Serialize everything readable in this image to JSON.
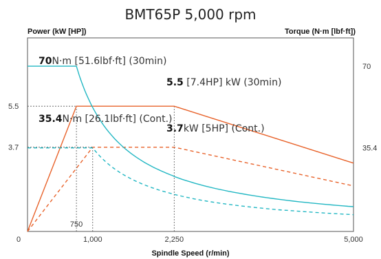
{
  "chart_data": {
    "type": "line",
    "title": "BMT65P  5,000 rpm",
    "xlabel": "Spindle Speed (r/min)",
    "ylabel_left": "Power (kW [HP])",
    "ylabel_right": "Torque (N·m [lbf·ft])",
    "xlim": [
      0,
      5000
    ],
    "ylim_power": [
      0,
      8.5
    ],
    "ylim_torque": [
      0,
      82
    ],
    "x_ticks": [
      {
        "value": 0,
        "label": "0"
      },
      {
        "value": 1000,
        "label": "1,000"
      },
      {
        "value": 2250,
        "label": "2,250"
      },
      {
        "value": 5000,
        "label": "5,000"
      }
    ],
    "inner_x_tick": {
      "value": 750,
      "label": "750"
    },
    "left_ticks": [
      {
        "value": 5.5,
        "label": "5.5"
      },
      {
        "value": 3.7,
        "label": "3.7"
      }
    ],
    "right_ticks": [
      {
        "value": 70,
        "label": "70"
      },
      {
        "value": 35.4,
        "label": "35.4"
      }
    ],
    "series": [
      {
        "name": "Power (30min)",
        "axis": "power",
        "color": "#e8622a",
        "dash": false,
        "x": [
          0,
          750,
          2250,
          5000
        ],
        "y": [
          0,
          5.5,
          5.5,
          3.0
        ]
      },
      {
        "name": "Power (Cont.)",
        "axis": "power",
        "color": "#e8622a",
        "dash": true,
        "x": [
          0,
          1000,
          2250,
          5000
        ],
        "y": [
          0,
          3.7,
          3.7,
          2.0
        ]
      },
      {
        "name": "Torque (30min)",
        "axis": "torque",
        "color": "#22b7c3",
        "dash": false,
        "x": [
          0,
          750,
          1000,
          1500,
          2000,
          2250,
          3000,
          4000,
          5000
        ],
        "y": [
          70,
          70,
          52.5,
          35.0,
          26.3,
          23.3,
          17.5,
          13.1,
          10.5
        ]
      },
      {
        "name": "Torque (Cont.)",
        "axis": "torque",
        "color": "#22b7c3",
        "dash": true,
        "x": [
          0,
          1000,
          1500,
          2000,
          2250,
          3000,
          4000,
          5000
        ],
        "y": [
          35.4,
          35.4,
          23.6,
          17.7,
          15.7,
          11.8,
          8.9,
          7.1
        ]
      }
    ],
    "annotations": [
      {
        "bold": "70",
        "rest": "N·m [51.6lbf·ft] (30min)"
      },
      {
        "bold": "5.5",
        "rest": " [7.4HP] kW (30min)"
      },
      {
        "bold": "35.4",
        "rest": "N·m [26.1lbf·ft] (Cont.)"
      },
      {
        "bold": "3.7",
        "rest": "kW [5HP] (Cont.)"
      }
    ],
    "guides": [
      {
        "type": "h",
        "axis": "power",
        "value": 5.5,
        "x_from": 0,
        "x_to": 750
      },
      {
        "type": "h",
        "axis": "power",
        "value": 3.7,
        "x_from": 0,
        "x_to": 1000
      },
      {
        "type": "v",
        "value": 750,
        "axis": "power",
        "y_to": 5.5
      },
      {
        "type": "v",
        "value": 1000,
        "axis": "power",
        "y_to": 3.7
      },
      {
        "type": "v",
        "value": 2250,
        "axis": "power",
        "y_to": 5.5
      }
    ],
    "grid": false,
    "legend": "none"
  }
}
